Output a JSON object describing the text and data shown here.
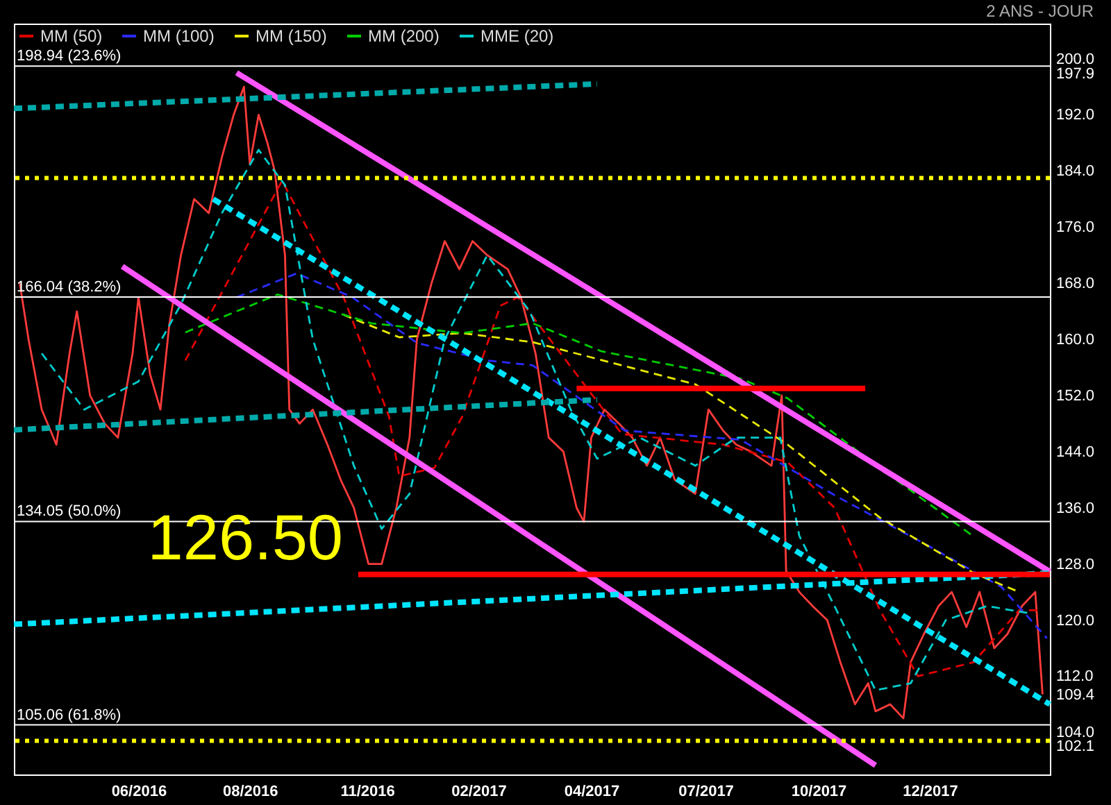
{
  "chart_data": {
    "type": "line",
    "title": "2 ANS - JOUR",
    "xlim": [
      "2016-03-13",
      "2018-02-18"
    ],
    "ylim": [
      98,
      205
    ],
    "xticks": [
      {
        "value": "2016-06-06",
        "label": "06/2016"
      },
      {
        "value": "2016-08-21",
        "label": "08/2016"
      },
      {
        "value": "2016-11-09",
        "label": "11/2016"
      },
      {
        "value": "2017-01-24",
        "label": "02/2017"
      },
      {
        "value": "2017-04-11",
        "label": "04/2017"
      },
      {
        "value": "2017-06-28",
        "label": "07/2017"
      },
      {
        "value": "2017-09-13",
        "label": "10/2017"
      },
      {
        "value": "2017-11-28",
        "label": "12/2017"
      }
    ],
    "yticks": [
      {
        "value": 104,
        "label": "104.0"
      },
      {
        "value": 112,
        "label": "112.0"
      },
      {
        "value": 120,
        "label": "120.0"
      },
      {
        "value": 128,
        "label": "128.0"
      },
      {
        "value": 136,
        "label": "136.0"
      },
      {
        "value": 144,
        "label": "144.0"
      },
      {
        "value": 152,
        "label": "152.0"
      },
      {
        "value": 160,
        "label": "160.0"
      },
      {
        "value": 168,
        "label": "168.0"
      },
      {
        "value": 176,
        "label": "176.0"
      },
      {
        "value": 184,
        "label": "184.0"
      },
      {
        "value": 192,
        "label": "192.0"
      },
      {
        "value": 200,
        "label": "200.0"
      },
      {
        "value": 197.9,
        "label": "197.9"
      },
      {
        "value": 109.4,
        "label": "109.4"
      },
      {
        "value": 102.1,
        "label": "102.1"
      }
    ],
    "legend": "top left",
    "line_style": "solid",
    "series": [
      {
        "color": "#ff3b3b",
        "x": [
          "2016-03-17",
          "2016-03-23",
          "2016-04-01",
          "2016-04-11",
          "2016-04-20",
          "2016-04-25",
          "2016-05-04",
          "2016-05-14",
          "2016-05-23",
          "2016-06-02",
          "2016-06-06",
          "2016-06-14",
          "2016-06-21",
          "2016-06-27",
          "2016-07-05",
          "2016-07-14",
          "2016-07-24",
          "2016-08-02",
          "2016-08-10",
          "2016-08-17",
          "2016-08-21",
          "2016-08-27",
          "2016-09-02",
          "2016-09-07",
          "2016-09-14",
          "2016-09-17",
          "2016-09-24",
          "2016-10-03",
          "2016-10-13",
          "2016-10-22",
          "2016-10-31",
          "2016-11-10",
          "2016-11-19",
          "2016-11-29",
          "2016-12-08",
          "2016-12-13",
          "2016-12-23",
          "2017-01-01",
          "2017-01-11",
          "2017-01-20",
          "2017-01-30",
          "2017-02-13",
          "2017-02-22",
          "2017-03-04",
          "2017-03-13",
          "2017-03-23",
          "2017-04-01",
          "2017-04-06",
          "2017-04-11",
          "2017-04-20",
          "2017-04-30",
          "2017-05-09",
          "2017-05-19",
          "2017-05-28",
          "2017-06-07",
          "2017-06-21",
          "2017-06-30",
          "2017-07-10",
          "2017-07-19",
          "2017-07-29",
          "2017-08-12",
          "2017-08-19",
          "2017-08-22",
          "2017-08-31",
          "2017-09-09",
          "2017-09-19",
          "2017-09-28",
          "2017-10-08",
          "2017-10-17",
          "2017-10-22",
          "2017-11-01",
          "2017-11-10",
          "2017-11-15",
          "2017-11-24",
          "2017-12-04",
          "2017-12-13",
          "2017-12-23",
          "2018-01-01",
          "2018-01-11",
          "2018-01-20",
          "2018-01-30",
          "2018-02-08",
          "2018-02-13"
        ],
        "values": [
          168,
          160,
          150,
          145,
          158,
          164,
          152,
          148,
          146,
          158,
          166,
          155,
          150,
          162,
          172,
          180,
          178,
          186,
          192,
          196,
          185,
          192,
          188,
          184,
          172,
          150,
          148,
          150,
          145,
          140,
          136,
          128,
          128,
          136,
          146,
          160,
          168,
          174,
          170,
          174,
          172,
          170,
          166,
          158,
          146,
          144,
          136,
          134,
          146,
          150,
          148,
          146,
          142,
          146,
          140,
          138,
          150,
          147,
          145,
          144,
          142,
          152,
          127,
          124,
          122,
          120,
          114,
          108,
          111,
          107,
          108,
          106,
          114,
          118,
          122,
          124,
          119,
          124,
          116,
          118,
          122,
          124,
          109.4
        ]
      },
      {
        "name": "MM (50)",
        "color": "#e00000",
        "line_style": "dashed",
        "x": [
          "2016-07-08",
          "2016-09-12",
          "2016-10-24",
          "2016-11-24",
          "2016-12-01",
          "2016-12-25",
          "2017-01-13",
          "2017-02-08",
          "2017-02-20",
          "2017-05-02",
          "2017-07-10",
          "2017-08-23",
          "2017-09-24",
          "2017-10-25",
          "2017-11-20",
          "2017-12-28",
          "2018-01-28",
          "2018-02-10"
        ],
        "values": [
          157,
          182.6,
          166,
          149,
          140.5,
          141.7,
          149,
          164.8,
          166,
          146.5,
          145,
          142.5,
          136,
          121.4,
          112,
          114,
          121.4,
          121.4
        ]
      },
      {
        "name": "MM (100)",
        "color": "#2a2aff",
        "line_style": "dashed",
        "x": [
          "2016-08-12",
          "2016-09-22",
          "2016-10-30",
          "2016-12-13",
          "2017-01-30",
          "2017-03-02",
          "2017-05-04",
          "2017-07-22",
          "2017-09-24",
          "2017-11-26",
          "2018-01-16",
          "2018-02-16"
        ],
        "values": [
          166,
          169.4,
          166,
          159.5,
          157,
          156.3,
          147,
          145.7,
          137.8,
          130.7,
          124.7,
          117.4
        ]
      },
      {
        "name": "MM (150)",
        "color": "#e8e800",
        "line_style": "dashed",
        "x": [
          "2016-10-24",
          "2016-12-01",
          "2017-01-13",
          "2017-03-02",
          "2017-06-21",
          "2017-08-23",
          "2017-10-25",
          "2017-12-28",
          "2018-01-28"
        ],
        "values": [
          163.5,
          160.3,
          160.9,
          159.6,
          153.6,
          145,
          134.6,
          126.7,
          124
        ]
      },
      {
        "name": "MM (200)",
        "color": "#00cc00",
        "line_style": "dashed",
        "x": [
          "2016-07-08",
          "2016-09-09",
          "2016-11-12",
          "2017-01-13",
          "2017-03-02",
          "2017-04-18",
          "2017-07-22",
          "2017-08-23",
          "2017-10-25",
          "2017-12-28"
        ],
        "values": [
          161,
          166.4,
          162.3,
          160.9,
          162.3,
          158.3,
          154.4,
          151.6,
          141.7,
          131.9
        ]
      },
      {
        "name": "MME (20)",
        "color": "#00cccc",
        "line_style": "dashed",
        "x": [
          "2016-04-01",
          "2016-04-30",
          "2016-06-06",
          "2016-07-05",
          "2016-08-02",
          "2016-08-27",
          "2016-09-14",
          "2016-10-03",
          "2016-10-31",
          "2016-11-19",
          "2016-12-08",
          "2017-01-01",
          "2017-01-30",
          "2017-02-28",
          "2017-03-28",
          "2017-04-15",
          "2017-05-14",
          "2017-06-21",
          "2017-07-19",
          "2017-08-18",
          "2017-08-31",
          "2017-09-24",
          "2017-10-22",
          "2017-11-15",
          "2017-12-09",
          "2018-01-06",
          "2018-02-03"
        ],
        "values": [
          158,
          150,
          154,
          165,
          178,
          187,
          182,
          160,
          142,
          133,
          138,
          160,
          172,
          164,
          150,
          143,
          146,
          142,
          146,
          146,
          132,
          122,
          110,
          111,
          120,
          122,
          121
        ]
      },
      {
        "color": "#ff55ff",
        "x": [
          "2016-08-12",
          "2018-02-18"
        ],
        "values": [
          198,
          126.9
        ]
      },
      {
        "color": "#ff55ff",
        "x": [
          "2016-05-26",
          "2017-10-22"
        ],
        "values": [
          170.4,
          99.3
        ]
      },
      {
        "color": "#00e5ff",
        "line_style": "dashed",
        "x": [
          "2016-07-27",
          "2018-02-18"
        ],
        "values": [
          180,
          108
        ]
      },
      {
        "color": "#00e5ff",
        "line_style": "dashed",
        "x": [
          "2016-03-13",
          "2018-02-18"
        ],
        "values": [
          119.4,
          126.7
        ]
      },
      {
        "color": "#00aaaa",
        "line_style": "dashed",
        "x": [
          "2016-03-13",
          "2017-04-15"
        ],
        "values": [
          147.1,
          151.4
        ]
      },
      {
        "color": "#00aaaa",
        "line_style": "dashed",
        "x": [
          "2016-03-13",
          "2017-04-15"
        ],
        "values": [
          192.9,
          196.4
        ]
      },
      {
        "color": "#ff0000",
        "x": [
          "2016-11-03",
          "2018-02-18"
        ],
        "values": [
          126.5,
          126.5
        ]
      },
      {
        "color": "#ff0000",
        "x": [
          "2017-04-01",
          "2017-10-15"
        ],
        "values": [
          153,
          153
        ]
      }
    ],
    "ref_lines": [
      {
        "axis": "y",
        "value": 198.94,
        "label": "198.94 (23.6%)",
        "color": "#ffffff",
        "line_style": "solid"
      },
      {
        "axis": "y",
        "value": 166.04,
        "label": "166.04 (38.2%)",
        "color": "#ffffff",
        "line_style": "solid"
      },
      {
        "axis": "y",
        "value": 134.05,
        "label": "134.05 (50.0%)",
        "color": "#ffffff",
        "line_style": "solid"
      },
      {
        "axis": "y",
        "value": 105.06,
        "label": "105.06 (61.8%)",
        "color": "#ffffff",
        "line_style": "solid"
      },
      {
        "axis": "y",
        "value": 183,
        "color": "#ffff00",
        "line_style": "dotted"
      },
      {
        "axis": "y",
        "value": 102.8,
        "color": "#ffff00",
        "line_style": "dotted"
      }
    ],
    "annotations": [
      "126.50"
    ]
  }
}
